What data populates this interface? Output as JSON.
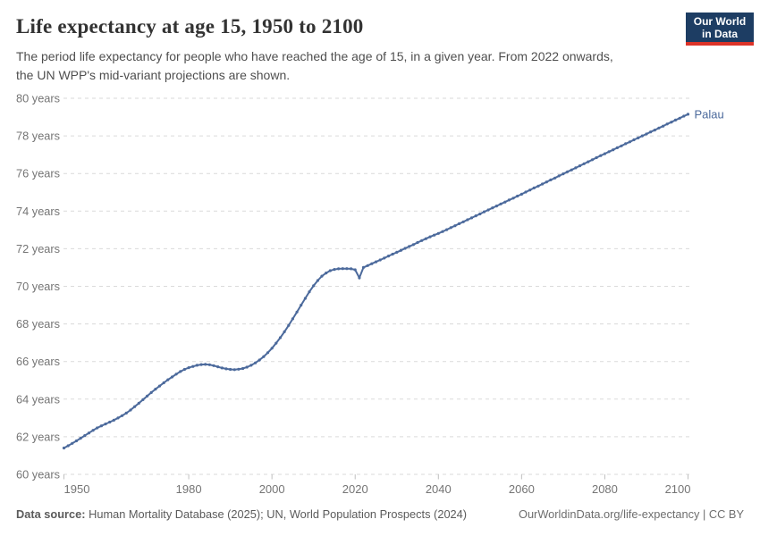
{
  "header": {
    "title": "Life expectancy at age 15, 1950 to 2100",
    "subtitle_lines": [
      "The period life expectancy for people who have reached the age of 15, in a given year. From 2022 onwards,",
      "the UN WPP's mid-variant projections are shown."
    ],
    "logo": {
      "line1": "Our World",
      "line2": "in Data",
      "bg_color": "#1d3d63",
      "stripe_color": "#dc3328"
    }
  },
  "footer": {
    "source_label": "Data source:",
    "source_text": " Human Mortality Database (2025); UN, World Population Prospects (2024)",
    "right_text": "OurWorldinData.org/life-expectancy | CC BY"
  },
  "chart_data": {
    "type": "line",
    "title": "Life expectancy at age 15, 1950 to 2100",
    "entity": "Palau",
    "xlim": [
      1950,
      2100
    ],
    "ylim": [
      60,
      80
    ],
    "x_ticks": [
      1950,
      1980,
      2000,
      2020,
      2040,
      2060,
      2080,
      2100
    ],
    "y_ticks": [
      60,
      62,
      64,
      66,
      68,
      70,
      72,
      74,
      76,
      78,
      80
    ],
    "y_tick_suffix": " years",
    "grid": "dashed",
    "legend_position": "end-of-line-label",
    "colors": {
      "line": "#4C6A9C",
      "gridline": "#dadada",
      "tick": "#c0c0c0",
      "axis_text": "#757575"
    },
    "x_start": 1950,
    "x_step": 1,
    "series": [
      {
        "name": "Palau",
        "color": "#4C6A9C",
        "values": [
          61.4,
          61.52,
          61.65,
          61.78,
          61.92,
          62.06,
          62.2,
          62.34,
          62.47,
          62.58,
          62.68,
          62.78,
          62.88,
          63.0,
          63.12,
          63.26,
          63.42,
          63.6,
          63.78,
          63.97,
          64.16,
          64.35,
          64.53,
          64.7,
          64.87,
          65.03,
          65.18,
          65.33,
          65.47,
          65.58,
          65.67,
          65.74,
          65.8,
          65.84,
          65.85,
          65.83,
          65.78,
          65.72,
          65.66,
          65.61,
          65.58,
          65.57,
          65.59,
          65.63,
          65.7,
          65.8,
          65.93,
          66.08,
          66.26,
          66.47,
          66.71,
          66.98,
          67.27,
          67.58,
          67.92,
          68.27,
          68.63,
          69.0,
          69.36,
          69.71,
          70.03,
          70.31,
          70.54,
          70.71,
          70.83,
          70.9,
          70.93,
          70.94,
          70.94,
          70.93,
          70.88,
          70.45,
          71.0,
          71.1,
          71.2,
          71.3,
          71.4,
          71.5,
          71.61,
          71.71,
          71.81,
          71.91,
          72.02,
          72.12,
          72.22,
          72.33,
          72.43,
          72.53,
          72.63,
          72.72,
          72.81,
          72.91,
          73.01,
          73.12,
          73.22,
          73.33,
          73.43,
          73.54,
          73.64,
          73.75,
          73.85,
          73.96,
          74.06,
          74.17,
          74.27,
          74.38,
          74.48,
          74.59,
          74.69,
          74.8,
          74.9,
          75.01,
          75.12,
          75.23,
          75.33,
          75.44,
          75.55,
          75.66,
          75.76,
          75.87,
          75.98,
          76.09,
          76.19,
          76.3,
          76.41,
          76.52,
          76.62,
          76.73,
          76.84,
          76.95,
          77.05,
          77.16,
          77.26,
          77.37,
          77.47,
          77.58,
          77.68,
          77.79,
          77.89,
          78.0,
          78.1,
          78.21,
          78.31,
          78.42,
          78.52,
          78.63,
          78.73,
          78.84,
          78.94,
          79.05,
          79.15
        ]
      }
    ]
  }
}
